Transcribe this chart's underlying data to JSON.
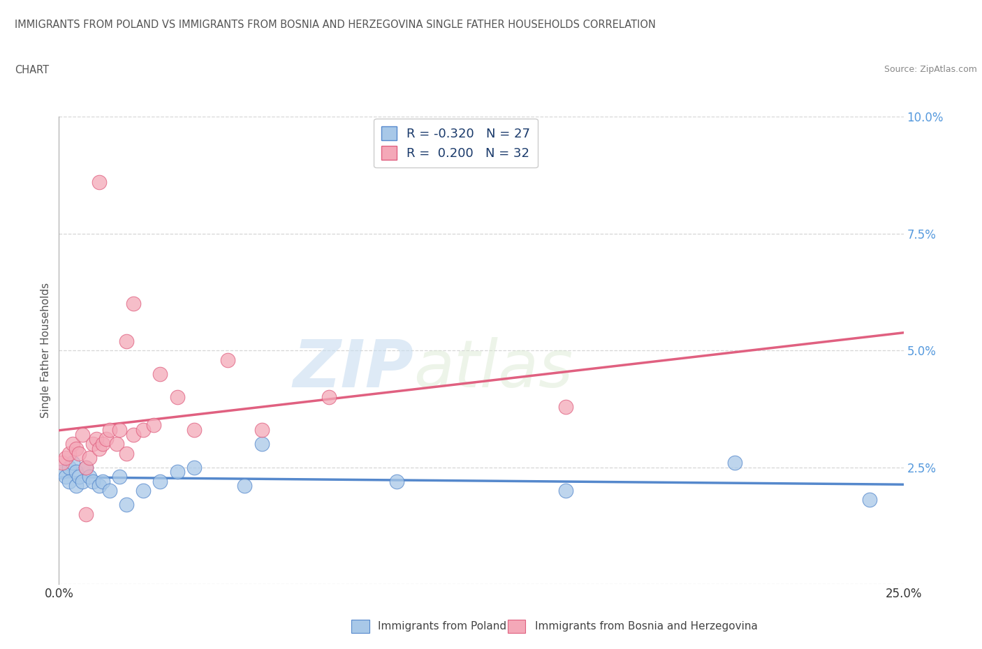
{
  "title_line1": "IMMIGRANTS FROM POLAND VS IMMIGRANTS FROM BOSNIA AND HERZEGOVINA SINGLE FATHER HOUSEHOLDS CORRELATION",
  "title_line2": "CHART",
  "source": "Source: ZipAtlas.com",
  "ylabel": "Single Father Households",
  "xlim": [
    0.0,
    0.25
  ],
  "ylim": [
    0.0,
    0.1
  ],
  "xticks": [
    0.0,
    0.05,
    0.1,
    0.15,
    0.2,
    0.25
  ],
  "yticks": [
    0.0,
    0.025,
    0.05,
    0.075,
    0.1
  ],
  "poland_R": -0.32,
  "poland_N": 27,
  "bosnia_R": 0.2,
  "bosnia_N": 32,
  "poland_color": "#a8c8e8",
  "bosnia_color": "#f4a8b8",
  "poland_line_color": "#5588cc",
  "bosnia_line_color": "#e06080",
  "watermark_zip": "ZIP",
  "watermark_atlas": "atlas",
  "background_color": "#ffffff",
  "grid_color": "#cccccc",
  "poland_x": [
    0.001,
    0.002,
    0.003,
    0.003,
    0.004,
    0.005,
    0.005,
    0.006,
    0.007,
    0.008,
    0.009,
    0.01,
    0.012,
    0.013,
    0.015,
    0.018,
    0.02,
    0.025,
    0.03,
    0.035,
    0.04,
    0.055,
    0.06,
    0.1,
    0.15,
    0.2,
    0.24
  ],
  "poland_y": [
    0.024,
    0.023,
    0.025,
    0.022,
    0.026,
    0.024,
    0.021,
    0.023,
    0.022,
    0.025,
    0.023,
    0.022,
    0.021,
    0.022,
    0.02,
    0.023,
    0.017,
    0.02,
    0.022,
    0.024,
    0.025,
    0.021,
    0.03,
    0.022,
    0.02,
    0.026,
    0.018
  ],
  "bosnia_x": [
    0.001,
    0.002,
    0.003,
    0.004,
    0.005,
    0.006,
    0.007,
    0.008,
    0.009,
    0.01,
    0.011,
    0.012,
    0.013,
    0.014,
    0.015,
    0.017,
    0.018,
    0.02,
    0.022,
    0.025,
    0.028,
    0.03,
    0.035,
    0.04,
    0.05,
    0.06,
    0.08,
    0.15,
    0.02,
    0.008,
    0.012,
    0.022
  ],
  "bosnia_y": [
    0.026,
    0.027,
    0.028,
    0.03,
    0.029,
    0.028,
    0.032,
    0.025,
    0.027,
    0.03,
    0.031,
    0.029,
    0.03,
    0.031,
    0.033,
    0.03,
    0.033,
    0.028,
    0.032,
    0.033,
    0.034,
    0.045,
    0.04,
    0.033,
    0.048,
    0.033,
    0.04,
    0.038,
    0.052,
    0.015,
    0.086,
    0.06
  ]
}
